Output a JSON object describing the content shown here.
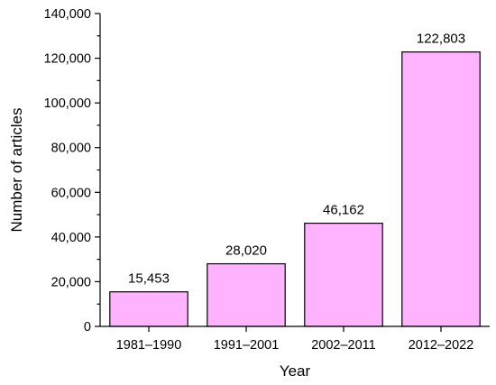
{
  "chart_data": {
    "type": "bar",
    "categories": [
      "1981–1990",
      "1991–2001",
      "2002–2011",
      "2012–2022"
    ],
    "values": [
      15453,
      28020,
      46162,
      122803
    ],
    "data_labels": [
      "15,453",
      "28,020",
      "46,162",
      "122,803"
    ],
    "xlabel": "Year",
    "ylabel": "Number of articles",
    "ylim": [
      0,
      140000
    ],
    "yticks": [
      0,
      20000,
      40000,
      60000,
      80000,
      100000,
      120000,
      140000
    ],
    "ytick_labels": [
      "0",
      "20,000",
      "40,000",
      "60,000",
      "80,000",
      "100,000",
      "120,000",
      "140,000"
    ],
    "grid": false,
    "bar_color": "#ffb3ff",
    "bar_edge_color": "#000000"
  }
}
